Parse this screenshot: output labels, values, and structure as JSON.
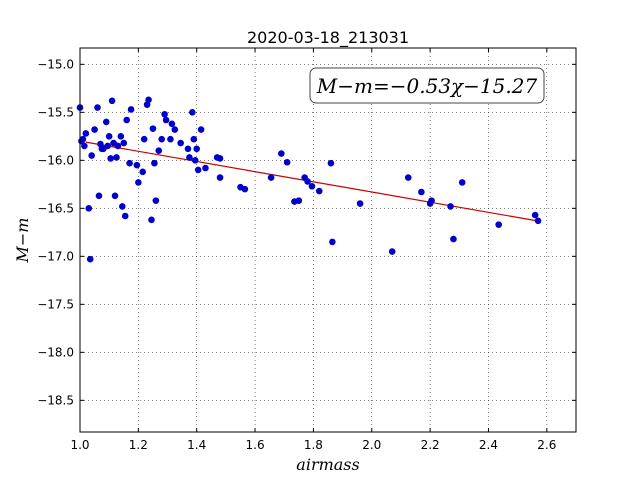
{
  "chart_data": {
    "type": "scatter",
    "title": "2020-03-18_213031",
    "xlabel": "airmass",
    "ylabel": "M−m",
    "annotation": "M−m=−0.53χ−15.27",
    "xlim": [
      1.0,
      2.7
    ],
    "ylim": [
      -18.83,
      -14.83
    ],
    "x_ticks": [
      1.0,
      1.2,
      1.4,
      1.6,
      1.8,
      2.0,
      2.2,
      2.4,
      2.6
    ],
    "x_tick_labels": [
      "1.0",
      "1.2",
      "1.4",
      "1.6",
      "1.8",
      "2.0",
      "2.2",
      "2.4",
      "2.6"
    ],
    "y_ticks": [
      -15.0,
      -15.5,
      -16.0,
      -16.5,
      -17.0,
      -17.5,
      -18.0,
      -18.5
    ],
    "y_tick_labels": [
      "−15.0",
      "−15.5",
      "−16.0",
      "−16.5",
      "−17.0",
      "−17.5",
      "−18.0",
      "−18.5"
    ],
    "grid": true,
    "colors": {
      "points": "#0000cc",
      "fit": "#cc0000"
    },
    "fit": {
      "slope": -0.53,
      "intercept": -15.27,
      "x_range": [
        1.02,
        2.57
      ]
    },
    "points": {
      "x": [
        1.0,
        1.005,
        1.01,
        1.015,
        1.02,
        1.03,
        1.035,
        1.04,
        1.05,
        1.06,
        1.065,
        1.07,
        1.075,
        1.08,
        1.09,
        1.095,
        1.1,
        1.105,
        1.11,
        1.115,
        1.12,
        1.125,
        1.13,
        1.14,
        1.145,
        1.15,
        1.155,
        1.16,
        1.17,
        1.175,
        1.195,
        1.2,
        1.215,
        1.22,
        1.23,
        1.235,
        1.245,
        1.25,
        1.255,
        1.26,
        1.27,
        1.28,
        1.29,
        1.295,
        1.31,
        1.315,
        1.325,
        1.345,
        1.37,
        1.375,
        1.385,
        1.39,
        1.395,
        1.4,
        1.405,
        1.415,
        1.43,
        1.47,
        1.48,
        1.48,
        1.55,
        1.565,
        1.655,
        1.69,
        1.71,
        1.735,
        1.75,
        1.77,
        1.78,
        1.795,
        1.82,
        1.86,
        1.865,
        1.96,
        2.07,
        2.125,
        2.17,
        2.2,
        2.205,
        2.27,
        2.28,
        2.31,
        2.435,
        2.56,
        2.57
      ],
      "y": [
        -15.45,
        -15.8,
        -15.78,
        -15.85,
        -15.72,
        -16.5,
        -17.03,
        -15.95,
        -15.68,
        -15.45,
        -16.37,
        -15.83,
        -15.88,
        -15.88,
        -15.6,
        -15.85,
        -15.75,
        -15.98,
        -15.38,
        -15.82,
        -16.37,
        -15.97,
        -15.85,
        -15.75,
        -16.48,
        -15.82,
        -16.58,
        -15.58,
        -16.03,
        -15.47,
        -16.05,
        -16.23,
        -16.12,
        -15.78,
        -15.42,
        -15.37,
        -16.62,
        -15.67,
        -16.03,
        -16.42,
        -15.9,
        -15.78,
        -15.52,
        -15.58,
        -15.78,
        -15.62,
        -15.68,
        -15.82,
        -15.88,
        -15.97,
        -15.5,
        -15.78,
        -16.0,
        -15.88,
        -16.1,
        -15.68,
        -16.08,
        -15.97,
        -15.98,
        -16.18,
        -16.28,
        -16.3,
        -16.18,
        -15.93,
        -16.02,
        -16.43,
        -16.42,
        -16.18,
        -16.22,
        -16.27,
        -16.32,
        -16.03,
        -16.85,
        -16.45,
        -16.95,
        -16.18,
        -16.33,
        -16.45,
        -16.42,
        -16.48,
        -16.82,
        -16.23,
        -16.67,
        -16.57,
        -16.63
      ]
    }
  }
}
